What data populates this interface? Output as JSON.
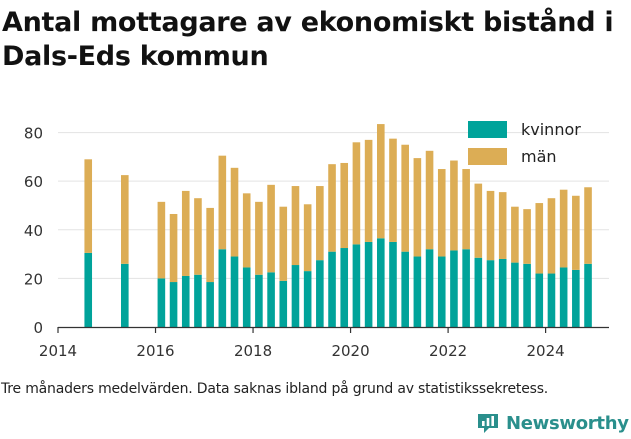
{
  "title": "Antal mottagare av ekonomiskt bistånd i Dals-Eds kommun",
  "footnote": "Tre månaders medelvärden. Data saknas ibland på grund av statistikssekretess.",
  "brand": "Newsworthy",
  "colors": {
    "kvinnor": "#00a39a",
    "man": "#dcad55",
    "grid": "#e3e3e3",
    "brand": "#2a8f8c"
  },
  "chart_data": {
    "type": "bar",
    "stacked": true,
    "x": [
      2014.62,
      2015.37,
      2016.12,
      2016.37,
      2016.62,
      2016.87,
      2017.12,
      2017.37,
      2017.62,
      2017.87,
      2018.12,
      2018.37,
      2018.62,
      2018.87,
      2019.12,
      2019.37,
      2019.62,
      2019.87,
      2020.12,
      2020.37,
      2020.62,
      2020.87,
      2021.12,
      2021.37,
      2021.62,
      2021.87,
      2022.12,
      2022.37,
      2022.62,
      2022.87,
      2023.12,
      2023.37,
      2023.62,
      2023.87,
      2024.12,
      2024.37,
      2024.62,
      2024.87
    ],
    "series": [
      {
        "name": "kvinnor",
        "values": [
          30.5,
          26,
          20,
          18.5,
          21,
          21.5,
          18.5,
          32,
          29,
          24.5,
          21.5,
          22.5,
          19,
          25.5,
          23,
          27.5,
          31,
          32.5,
          34,
          35,
          36.5,
          35,
          31,
          29,
          32,
          29,
          31.5,
          32,
          28.5,
          27.5,
          28,
          26.5,
          26,
          22,
          22,
          24.5,
          23.5,
          26
        ]
      },
      {
        "name": "män",
        "values": [
          38.5,
          36.5,
          31.5,
          28,
          35,
          31.5,
          30.5,
          38.5,
          36.5,
          30.5,
          30,
          36,
          30.5,
          32.5,
          27.5,
          30.5,
          36,
          35,
          42,
          42,
          47,
          42.5,
          44,
          40.5,
          40.5,
          36,
          37,
          33,
          30.5,
          28.5,
          27.5,
          23,
          22.5,
          29,
          31,
          32,
          30.5,
          31.5
        ]
      }
    ],
    "xticks": [
      "2014",
      "2016",
      "2018",
      "2020",
      "2022",
      "2024"
    ],
    "yticks": [
      "0",
      "20",
      "40",
      "60",
      "80"
    ],
    "xlim": [
      2014,
      2025.3
    ],
    "ylim": [
      0,
      86
    ],
    "grid": true,
    "legend_position": "top-right"
  }
}
